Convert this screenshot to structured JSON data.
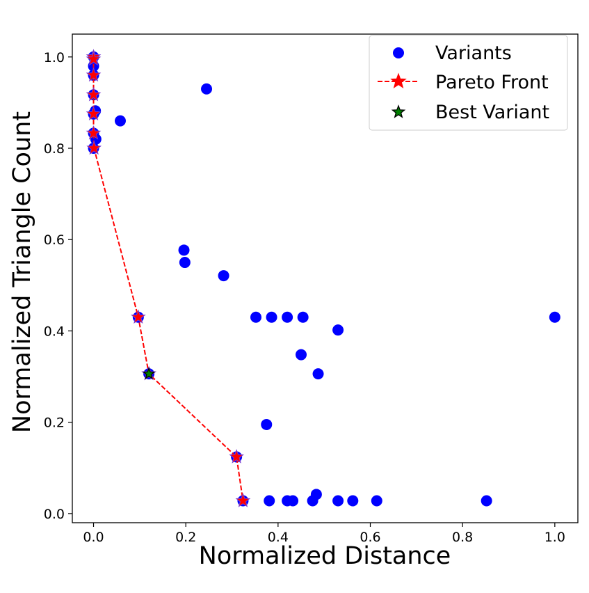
{
  "chart_data": {
    "type": "scatter",
    "title": "",
    "xlabel": "Normalized Distance",
    "ylabel": "Normalized Triangle Count",
    "xlim": [
      -0.046,
      1.05
    ],
    "ylim": [
      -0.02,
      1.05
    ],
    "grid": false,
    "legend_placement": "top-right",
    "x_ticks": [
      0.0,
      0.2,
      0.4,
      0.6,
      0.8,
      1.0
    ],
    "x_tick_labels": [
      "0.0",
      "0.2",
      "0.4",
      "0.6",
      "0.8",
      "1.0"
    ],
    "y_ticks": [
      0.0,
      0.2,
      0.4,
      0.6,
      0.8,
      1.0
    ],
    "y_tick_labels": [
      "0.0",
      "0.2",
      "0.4",
      "0.6",
      "0.8",
      "1.0"
    ],
    "series": [
      {
        "name": "Variants",
        "kind": "scatter",
        "marker": "circle",
        "color": "#0000ff",
        "points": [
          {
            "x": 0.0,
            "y": 1.0
          },
          {
            "x": 0.0,
            "y": 0.98
          },
          {
            "x": 0.0,
            "y": 0.96
          },
          {
            "x": 0.0,
            "y": 0.917
          },
          {
            "x": 0.004,
            "y": 0.882
          },
          {
            "x": 0.0,
            "y": 0.875
          },
          {
            "x": 0.0,
            "y": 0.833
          },
          {
            "x": 0.005,
            "y": 0.82
          },
          {
            "x": 0.0,
            "y": 0.8
          },
          {
            "x": 0.058,
            "y": 0.86
          },
          {
            "x": 0.245,
            "y": 0.93
          },
          {
            "x": 0.196,
            "y": 0.577
          },
          {
            "x": 0.198,
            "y": 0.55
          },
          {
            "x": 0.282,
            "y": 0.521
          },
          {
            "x": 0.097,
            "y": 0.43
          },
          {
            "x": 0.352,
            "y": 0.43
          },
          {
            "x": 0.386,
            "y": 0.43
          },
          {
            "x": 0.42,
            "y": 0.43
          },
          {
            "x": 0.454,
            "y": 0.43
          },
          {
            "x": 1.0,
            "y": 0.43
          },
          {
            "x": 0.53,
            "y": 0.402
          },
          {
            "x": 0.45,
            "y": 0.348
          },
          {
            "x": 0.487,
            "y": 0.306
          },
          {
            "x": 0.12,
            "y": 0.306
          },
          {
            "x": 0.375,
            "y": 0.195
          },
          {
            "x": 0.31,
            "y": 0.124
          },
          {
            "x": 0.324,
            "y": 0.028
          },
          {
            "x": 0.381,
            "y": 0.028
          },
          {
            "x": 0.42,
            "y": 0.028
          },
          {
            "x": 0.432,
            "y": 0.028
          },
          {
            "x": 0.475,
            "y": 0.028
          },
          {
            "x": 0.483,
            "y": 0.042
          },
          {
            "x": 0.53,
            "y": 0.028
          },
          {
            "x": 0.562,
            "y": 0.028
          },
          {
            "x": 0.614,
            "y": 0.028
          },
          {
            "x": 0.852,
            "y": 0.028
          }
        ]
      },
      {
        "name": "Pareto Front",
        "kind": "line",
        "marker": "star",
        "line_style": "dashed",
        "color": "#ff0000",
        "points": [
          {
            "x": 0.0,
            "y": 1.0
          },
          {
            "x": 0.0,
            "y": 0.995
          },
          {
            "x": 0.0,
            "y": 0.96
          },
          {
            "x": 0.0,
            "y": 0.917
          },
          {
            "x": 0.0,
            "y": 0.875
          },
          {
            "x": 0.0,
            "y": 0.833
          },
          {
            "x": 0.001,
            "y": 0.8
          },
          {
            "x": 0.097,
            "y": 0.43
          },
          {
            "x": 0.12,
            "y": 0.306
          },
          {
            "x": 0.31,
            "y": 0.124
          },
          {
            "x": 0.324,
            "y": 0.028
          }
        ]
      },
      {
        "name": "Best Variant",
        "kind": "scatter",
        "marker": "star",
        "color": "#008000",
        "points": [
          {
            "x": 0.12,
            "y": 0.306
          }
        ]
      }
    ]
  }
}
